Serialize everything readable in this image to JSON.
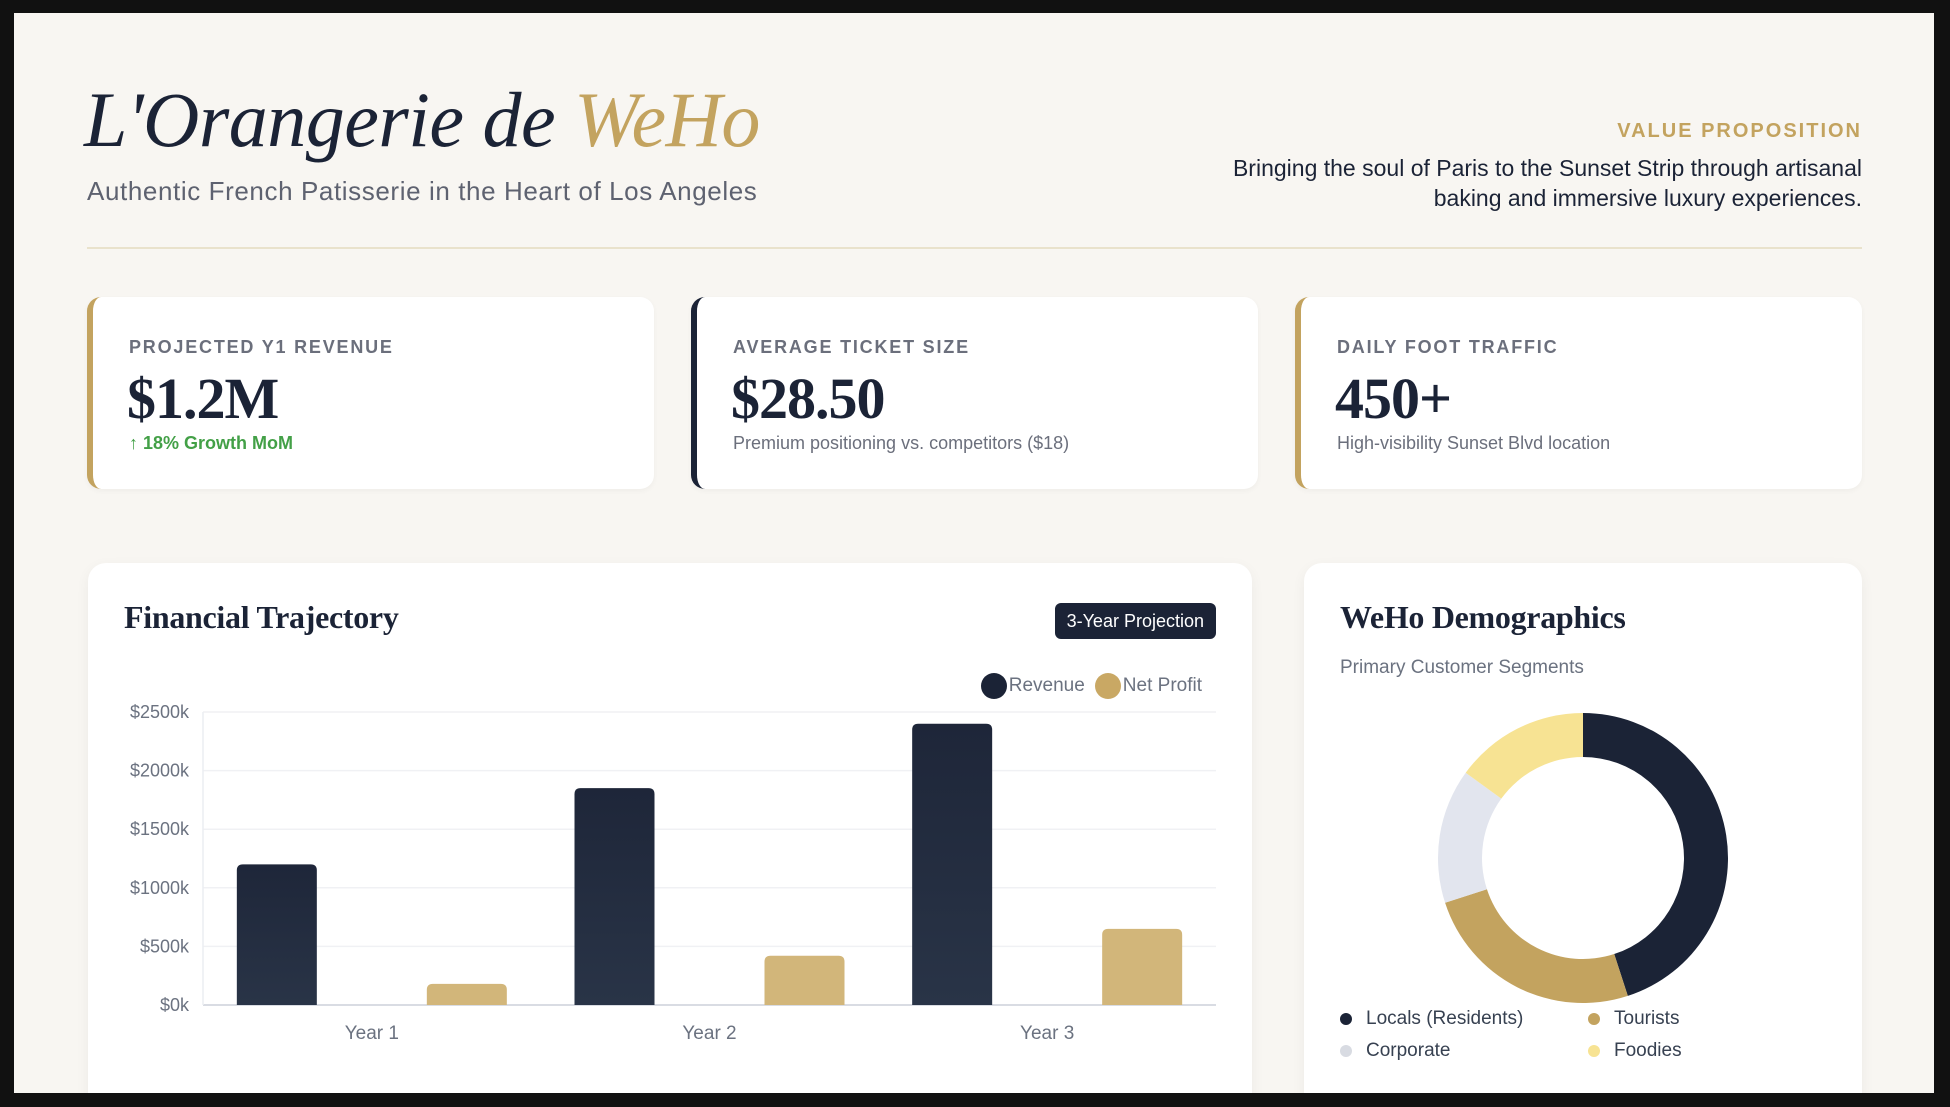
{
  "header": {
    "title_main": "L'Orangerie de ",
    "title_accent": "WeHo",
    "subtitle": "Authentic French Patisserie in the Heart of Los Angeles",
    "value_proposition_label": "VALUE PROPOSITION",
    "value_proposition_text": "Bringing the soul of Paris to the Sunset Strip through artisanal baking and immersive luxury experiences."
  },
  "kpis": [
    {
      "label": "PROJECTED Y1 REVENUE",
      "value": "$1.2M",
      "note": "↑ 18% Growth MoM",
      "note_type": "positive",
      "accent": "#c3a35f"
    },
    {
      "label": "AVERAGE TICKET SIZE",
      "value": "$28.50",
      "note": "Premium positioning vs. competitors ($18)",
      "note_type": "neutral",
      "accent": "#1b2336"
    },
    {
      "label": "DAILY FOOT TRAFFIC",
      "value": "450+",
      "note": "High-visibility Sunset Blvd location",
      "note_type": "neutral",
      "accent": "#c3a35f"
    }
  ],
  "financial": {
    "title": "Financial Trajectory",
    "badge": "3-Year Projection",
    "legend": [
      {
        "label": "Revenue",
        "color": "#1b2336"
      },
      {
        "label": "Net Profit",
        "color": "#c9a864"
      }
    ]
  },
  "demographics": {
    "title": "WeHo Demographics",
    "subtitle": "Primary Customer Segments",
    "legend": [
      {
        "label": "Locals (Residents)",
        "color": "#1b2336"
      },
      {
        "label": "Tourists",
        "color": "#c3a35f"
      },
      {
        "label": "Corporate",
        "color": "#d8dbe2"
      },
      {
        "label": "Foodies",
        "color": "#f7e393"
      }
    ]
  },
  "colors": {
    "navy": "#1b2336",
    "gold": "#c3a35f",
    "gold_bar": "#d2b67a",
    "background": "#f8f6f2",
    "positive": "#43a047"
  },
  "chart_data": [
    {
      "type": "bar",
      "title": "Financial Trajectory",
      "subtitle": "3-Year Projection",
      "categories": [
        "Year 1",
        "Year 2",
        "Year 3"
      ],
      "series": [
        {
          "name": "Revenue",
          "values": [
            1200,
            1850,
            2400
          ],
          "color": "#1b2336"
        },
        {
          "name": "Net Profit",
          "values": [
            180,
            420,
            650
          ],
          "color": "#d2b67a"
        }
      ],
      "xlabel": "",
      "ylabel": "",
      "unit": "$k",
      "ylim": [
        0,
        2500
      ],
      "yticks": [
        "$0k",
        "$500k",
        "$1000k",
        "$1500k",
        "$2000k",
        "$2500k"
      ],
      "grid": true,
      "legend_position": "top-right"
    },
    {
      "type": "pie",
      "donut": true,
      "title": "WeHo Demographics",
      "subtitle": "Primary Customer Segments",
      "categories": [
        "Locals (Residents)",
        "Tourists",
        "Corporate",
        "Foodies"
      ],
      "values": [
        45,
        25,
        15,
        15
      ],
      "colors": [
        "#1b2336",
        "#c3a35f",
        "#e2e5ee",
        "#f7e393"
      ],
      "legend_position": "bottom"
    }
  ]
}
